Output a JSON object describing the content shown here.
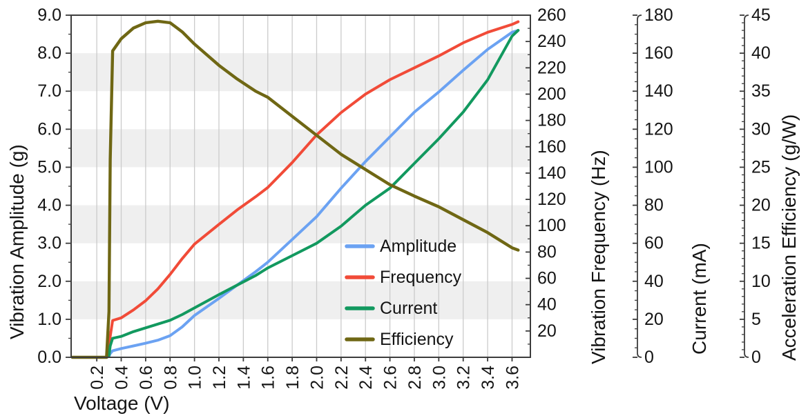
{
  "chart_data": {
    "type": "line",
    "title": "",
    "xlabel": "Voltage (V)",
    "xlim": [
      -0.01,
      3.75
    ],
    "x_tick_labels": [
      "0.2",
      "0.4",
      "0.6",
      "0.8",
      "1.0",
      "1.2",
      "1.4",
      "1.6",
      "1.8",
      "2.0",
      "2.2",
      "2.4",
      "2.6",
      "2.8",
      "3.0",
      "3.2",
      "3.4",
      "3.6"
    ],
    "band_ranges_amplitude": [
      [
        1,
        2
      ],
      [
        3,
        4
      ],
      [
        5,
        6
      ],
      [
        7,
        8
      ]
    ],
    "grid": "vertical-gridlines-with-horizontal-bands",
    "legend_position": "inside lower right of plot, no frame",
    "axes": {
      "amplitude": {
        "title": "Vibration Amplitude (g)",
        "side": "left",
        "range": [
          0,
          9
        ],
        "minor_step": 0.5,
        "tick_labels": [
          "0.0",
          "1.0",
          "2.0",
          "3.0",
          "4.0",
          "5.0",
          "6.0",
          "7.0",
          "8.0",
          "9.0"
        ]
      },
      "frequency": {
        "title": "Vibration Frequency (Hz)",
        "side": "right-1",
        "range": [
          0,
          260
        ],
        "minor_step": 10,
        "tick_labels": [
          "20",
          "40",
          "60",
          "80",
          "100",
          "120",
          "140",
          "160",
          "180",
          "200",
          "220",
          "240",
          "260"
        ]
      },
      "current": {
        "title": "Current (mA)",
        "side": "right-2",
        "range": [
          0,
          180
        ],
        "minor_step": 5,
        "tick_labels": [
          "0",
          "20",
          "40",
          "60",
          "80",
          "100",
          "120",
          "140",
          "160",
          "180"
        ]
      },
      "efficiency": {
        "title": "Acceleration Efficiency (g/W)",
        "side": "right-3",
        "range": [
          0,
          45
        ],
        "minor_step": 1,
        "tick_labels": [
          "0",
          "5",
          "10",
          "15",
          "20",
          "25",
          "30",
          "35",
          "40",
          "45"
        ]
      }
    },
    "x": [
      0.0,
      0.1,
      0.2,
      0.28,
      0.3,
      0.31,
      0.33,
      0.4,
      0.5,
      0.6,
      0.7,
      0.8,
      0.9,
      1.0,
      1.2,
      1.35,
      1.5,
      1.6,
      1.8,
      2.0,
      2.2,
      2.4,
      2.6,
      2.8,
      3.0,
      3.2,
      3.4,
      3.6,
      3.65
    ],
    "series": [
      {
        "name": "Amplitude",
        "axis": "amplitude",
        "color": "#6BA2F2",
        "values": [
          0,
          0,
          0,
          0,
          0.02,
          0.1,
          0.17,
          0.23,
          0.3,
          0.37,
          0.45,
          0.57,
          0.8,
          1.1,
          1.55,
          1.9,
          2.25,
          2.5,
          3.1,
          3.7,
          4.45,
          5.15,
          5.8,
          6.45,
          6.98,
          7.55,
          8.1,
          8.55,
          8.6
        ]
      },
      {
        "name": "Frequency",
        "axis": "frequency",
        "color": "#F14B38",
        "values": [
          0,
          0,
          0,
          0,
          3,
          16,
          28,
          30,
          36,
          43,
          52,
          63,
          75,
          86,
          101,
          112,
          122,
          129,
          148,
          169,
          186,
          200,
          211,
          220,
          229,
          239,
          247,
          253,
          255
        ]
      },
      {
        "name": "Current",
        "axis": "current",
        "color": "#12995F",
        "values": [
          0,
          0,
          0,
          0,
          1,
          6,
          10,
          11,
          13.5,
          15.5,
          17.5,
          19.5,
          22.5,
          26,
          33,
          38,
          43,
          47,
          53.5,
          60,
          69,
          80,
          89,
          102,
          115,
          129,
          146,
          169,
          172
        ]
      },
      {
        "name": "Efficiency",
        "axis": "efficiency",
        "color": "#6F6714",
        "values": [
          0,
          0,
          0,
          0,
          6,
          26,
          40.3,
          41.9,
          43.3,
          44.0,
          44.2,
          44.0,
          42.8,
          41.2,
          38.4,
          36.6,
          35.0,
          34.2,
          31.7,
          29.2,
          26.7,
          24.7,
          22.7,
          21.2,
          19.8,
          18.1,
          16.4,
          14.4,
          14.1
        ]
      }
    ],
    "legend": [
      "Amplitude",
      "Frequency",
      "Current",
      "Efficiency"
    ],
    "colors": {
      "band": "#efefef",
      "grid": "#cbcbcb",
      "spine": "#3c3c3c",
      "text": "#141414"
    }
  }
}
